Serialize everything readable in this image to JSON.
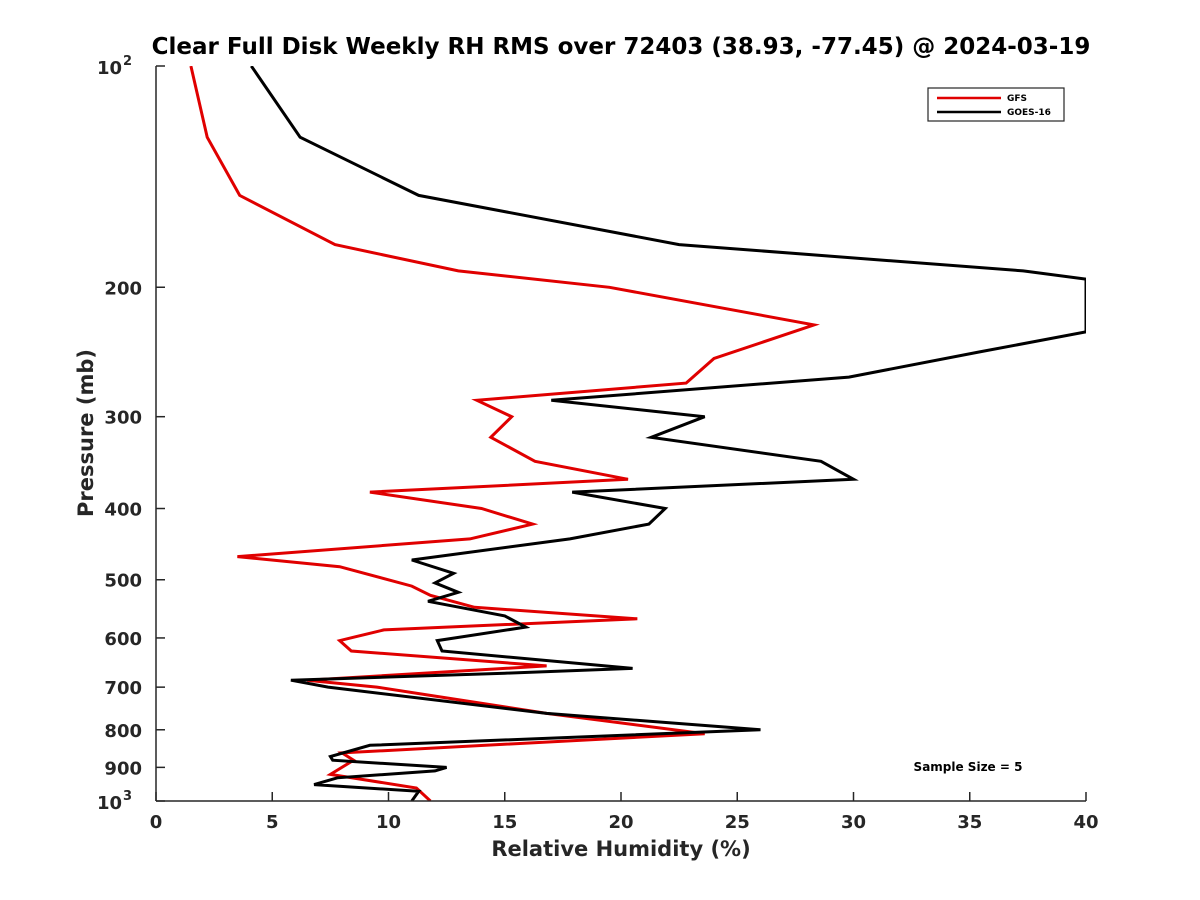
{
  "chart_data": {
    "type": "line",
    "title": "Clear Full Disk Weekly RH RMS over 72403 (38.93, -77.45) @ 2024-03-19",
    "xlabel": "Relative Humidity (%)",
    "ylabel": "Pressure (mb)",
    "xlim": [
      0,
      40
    ],
    "ylim": [
      100,
      1000
    ],
    "y_scale": "log",
    "y_reversed": true,
    "grid": false,
    "legend_position": "top-right",
    "x_ticks": [
      "0",
      "5",
      "10",
      "15",
      "20",
      "25",
      "30",
      "35",
      "40"
    ],
    "y_ticks": [
      {
        "value": 100,
        "base": "10",
        "exp": "2"
      },
      {
        "value": 200,
        "label": "200"
      },
      {
        "value": 300,
        "label": "300"
      },
      {
        "value": 400,
        "label": "400"
      },
      {
        "value": 500,
        "label": "500"
      },
      {
        "value": 600,
        "label": "600"
      },
      {
        "value": 700,
        "label": "700"
      },
      {
        "value": 800,
        "label": "800"
      },
      {
        "value": 900,
        "label": "900"
      },
      {
        "value": 1000,
        "base": "10",
        "exp": "3"
      }
    ],
    "series": [
      {
        "name": "GFS",
        "color": "#e00000",
        "points": [
          [
            1.5,
            100
          ],
          [
            2.2,
            125
          ],
          [
            3.6,
            150
          ],
          [
            7.7,
            175
          ],
          [
            13.0,
            190
          ],
          [
            19.5,
            200
          ],
          [
            28.3,
            225
          ],
          [
            24.0,
            250
          ],
          [
            22.8,
            270
          ],
          [
            13.8,
            285
          ],
          [
            15.3,
            300
          ],
          [
            14.4,
            320
          ],
          [
            16.3,
            345
          ],
          [
            20.3,
            365
          ],
          [
            9.2,
            380
          ],
          [
            14.0,
            400
          ],
          [
            16.2,
            420
          ],
          [
            13.5,
            440
          ],
          [
            3.5,
            465
          ],
          [
            7.9,
            480
          ],
          [
            11.0,
            510
          ],
          [
            11.8,
            525
          ],
          [
            13.7,
            545
          ],
          [
            20.7,
            565
          ],
          [
            9.8,
            585
          ],
          [
            7.9,
            605
          ],
          [
            8.4,
            625
          ],
          [
            16.8,
            655
          ],
          [
            6.5,
            685
          ],
          [
            9.5,
            700
          ],
          [
            16.8,
            760
          ],
          [
            23.6,
            810
          ],
          [
            8.0,
            860
          ],
          [
            8.5,
            880
          ],
          [
            7.5,
            920
          ],
          [
            11.2,
            960
          ],
          [
            11.8,
            1000
          ]
        ]
      },
      {
        "name": "GOES-16",
        "color": "#000000",
        "points": [
          [
            4.1,
            100
          ],
          [
            6.2,
            125
          ],
          [
            11.3,
            150
          ],
          [
            22.5,
            175
          ],
          [
            37.3,
            190
          ],
          [
            40.0,
            195
          ],
          [
            40.0,
            230
          ],
          [
            35.4,
            245
          ],
          [
            29.8,
            265
          ],
          [
            17.0,
            285
          ],
          [
            23.6,
            300
          ],
          [
            21.3,
            320
          ],
          [
            28.6,
            345
          ],
          [
            30.0,
            365
          ],
          [
            17.9,
            380
          ],
          [
            21.9,
            400
          ],
          [
            21.2,
            420
          ],
          [
            17.8,
            440
          ],
          [
            11.0,
            470
          ],
          [
            12.8,
            490
          ],
          [
            12.0,
            505
          ],
          [
            13.0,
            520
          ],
          [
            11.7,
            535
          ],
          [
            15.0,
            560
          ],
          [
            15.9,
            580
          ],
          [
            12.1,
            605
          ],
          [
            12.3,
            625
          ],
          [
            20.5,
            660
          ],
          [
            15.0,
            670
          ],
          [
            5.8,
            685
          ],
          [
            7.4,
            700
          ],
          [
            16.8,
            760
          ],
          [
            26.0,
            800
          ],
          [
            9.2,
            840
          ],
          [
            7.5,
            870
          ],
          [
            7.6,
            880
          ],
          [
            12.5,
            900
          ],
          [
            12.0,
            910
          ],
          [
            7.8,
            930
          ],
          [
            6.8,
            950
          ],
          [
            11.3,
            970
          ],
          [
            11.0,
            1000
          ]
        ]
      }
    ],
    "annotation": "Sample Size = 5"
  }
}
